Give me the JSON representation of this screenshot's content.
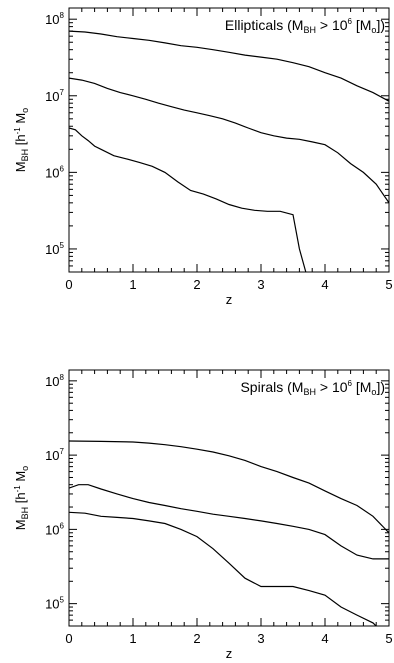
{
  "chart_data": [
    {
      "type": "line",
      "annotation": {
        "pre": "Ellipticals (M",
        "sub1": "BH",
        "mid": " > 10",
        "sup": "6",
        "mid2": " [M",
        "sub2": "o",
        "post": "])"
      },
      "xlabel": "z",
      "ylabel": {
        "m": "M",
        "sub": "BH",
        "unit": " [h",
        "sup": "-1",
        "unit2": " M",
        "sub2": "o"
      },
      "xlim": [
        0,
        5
      ],
      "ylim": [
        50000,
        140000000
      ],
      "y_scale": "log",
      "xticks": [
        "0",
        "1",
        "2",
        "3",
        "4",
        "5"
      ],
      "yticks": [
        {
          "value": 100000000,
          "base": "10",
          "exp": "8"
        },
        {
          "value": 10000000,
          "base": "10",
          "exp": "7"
        },
        {
          "value": 1000000,
          "base": "10",
          "exp": "6"
        },
        {
          "value": 100000,
          "base": "10",
          "exp": "5"
        }
      ],
      "series": [
        {
          "x": [
            0,
            0.25,
            0.5,
            0.75,
            1.0,
            1.25,
            1.5,
            1.75,
            2.0,
            2.25,
            2.5,
            2.75,
            3.0,
            3.25,
            3.5,
            3.75,
            4.0,
            4.25,
            4.5,
            4.75,
            5.0
          ],
          "values": [
            70000000,
            68000000,
            64000000,
            59000000,
            56000000,
            53000000,
            49000000,
            45000000,
            43000000,
            40000000,
            37000000,
            34000000,
            32000000,
            30000000,
            27000000,
            24000000,
            20000000,
            17000000,
            13500000,
            11000000,
            8500000
          ]
        },
        {
          "x": [
            0,
            0.2,
            0.4,
            0.6,
            0.8,
            1.0,
            1.2,
            1.4,
            1.6,
            1.8,
            2.0,
            2.2,
            2.4,
            2.6,
            2.8,
            3.0,
            3.2,
            3.4,
            3.6,
            3.8,
            4.0,
            4.2,
            4.4,
            4.6,
            4.8,
            5.0
          ],
          "values": [
            17000000,
            16000000,
            14500000,
            12500000,
            11000000,
            10000000,
            9000000,
            8000000,
            7200000,
            6500000,
            6000000,
            5500000,
            5000000,
            4400000,
            3800000,
            3300000,
            3000000,
            2800000,
            2700000,
            2500000,
            2300000,
            1800000,
            1300000,
            1000000,
            700000,
            400000
          ]
        },
        {
          "x": [
            0,
            0.1,
            0.2,
            0.3,
            0.4,
            0.5,
            0.7,
            0.9,
            1.1,
            1.3,
            1.5,
            1.7,
            1.9,
            2.1,
            2.3,
            2.5,
            2.7,
            2.9,
            3.1,
            3.3,
            3.5,
            3.6,
            3.7
          ],
          "values": [
            3800000,
            3600000,
            3000000,
            2600000,
            2200000,
            2000000,
            1650000,
            1500000,
            1350000,
            1200000,
            1000000,
            750000,
            580000,
            520000,
            450000,
            380000,
            340000,
            320000,
            310000,
            310000,
            280000,
            100000,
            50000
          ]
        }
      ]
    },
    {
      "type": "line",
      "annotation": {
        "pre": "Spirals (M",
        "sub1": "BH",
        "mid": " > 10",
        "sup": "6",
        "mid2": " [M",
        "sub2": "o",
        "post": "])"
      },
      "xlabel": "z",
      "ylabel": {
        "m": "M",
        "sub": "BH",
        "unit": " [h",
        "sup": "-1",
        "unit2": " M",
        "sub2": "o"
      },
      "xlim": [
        0,
        5
      ],
      "ylim": [
        50000,
        140000000
      ],
      "y_scale": "log",
      "xticks": [
        "0",
        "1",
        "2",
        "3",
        "4",
        "5"
      ],
      "yticks": [
        {
          "value": 100000000,
          "base": "10",
          "exp": "8"
        },
        {
          "value": 10000000,
          "base": "10",
          "exp": "7"
        },
        {
          "value": 1000000,
          "base": "10",
          "exp": "6"
        },
        {
          "value": 100000,
          "base": "10",
          "exp": "5"
        }
      ],
      "series": [
        {
          "x": [
            0,
            0.5,
            1.0,
            1.25,
            1.5,
            1.75,
            2.0,
            2.25,
            2.5,
            2.75,
            3.0,
            3.25,
            3.5,
            3.75,
            4.0,
            4.25,
            4.5,
            4.75,
            5.0
          ],
          "values": [
            15500000,
            15300000,
            15000000,
            14500000,
            13800000,
            13000000,
            12000000,
            11000000,
            9800000,
            8500000,
            7000000,
            6000000,
            5000000,
            4200000,
            3300000,
            2600000,
            2100000,
            1500000,
            900000
          ]
        },
        {
          "x": [
            0,
            0.15,
            0.3,
            0.5,
            0.75,
            1.0,
            1.25,
            1.5,
            1.75,
            2.0,
            2.25,
            2.5,
            2.75,
            3.0,
            3.25,
            3.5,
            3.75,
            4.0,
            4.25,
            4.5,
            4.75,
            5.0
          ],
          "values": [
            3600000,
            4000000,
            4000000,
            3500000,
            3000000,
            2600000,
            2300000,
            2100000,
            1900000,
            1750000,
            1600000,
            1500000,
            1400000,
            1300000,
            1200000,
            1100000,
            1000000,
            850000,
            600000,
            450000,
            400000,
            400000
          ]
        },
        {
          "x": [
            0,
            0.25,
            0.5,
            0.75,
            1.0,
            1.25,
            1.5,
            1.75,
            2.0,
            2.25,
            2.5,
            2.75,
            3.0,
            3.25,
            3.5,
            3.75,
            4.0,
            4.25,
            4.5,
            4.75,
            4.8
          ],
          "values": [
            1700000,
            1650000,
            1500000,
            1450000,
            1400000,
            1300000,
            1200000,
            1000000,
            800000,
            550000,
            350000,
            220000,
            170000,
            170000,
            170000,
            150000,
            130000,
            90000,
            70000,
            55000,
            50000
          ]
        }
      ]
    }
  ]
}
